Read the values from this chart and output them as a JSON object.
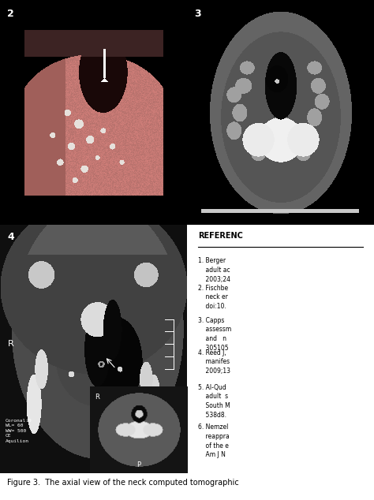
{
  "title": "Figure 3.",
  "caption": "The axial view of the neck computed tomographic",
  "panel2_label": "2",
  "panel3_label": "3",
  "panel4_label": "4",
  "ref_title": "REFERENC",
  "references": [
    "1. Berger\n    adult ac\n    2003;24",
    "2. Fischbe\n    neck er\n    doi:10.",
    "3. Capps\n    assessm\n    and   n\n    305105",
    "4. Reed J,\n    manifes\n    2009;13",
    "5. Al-Qud\n    adult  s\n    South M\n    538d8.",
    "6. Nemzel\n    reappra\n    of the e\n    Am J N"
  ],
  "fig_bg": "#ffffff",
  "ref_bg": "#ffffff",
  "panel2_bg": [
    0,
    0,
    0
  ],
  "panel3_bg": [
    0,
    0,
    0
  ],
  "panel4_bg": [
    20,
    20,
    20
  ],
  "white": "#ffffff",
  "black": "#000000",
  "gray_border": "#888888"
}
